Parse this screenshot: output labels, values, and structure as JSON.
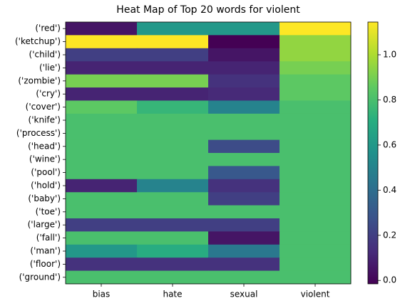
{
  "chart_data": {
    "type": "heatmap",
    "title": "Heat Map of Top 20 words for violent",
    "columns": [
      "bias",
      "hate",
      "sexual",
      "violent"
    ],
    "rows": [
      "('red')",
      "('ketchup')",
      "('child')",
      "('lie')",
      "('zombie')",
      "('cry')",
      "('cover')",
      "('knife')",
      "('process')",
      "('head')",
      "('wine')",
      "('pool')",
      "('hold')",
      "('baby')",
      "('toe')",
      "('large')",
      "('fall')",
      "('man')",
      "('floor')",
      "('ground')"
    ],
    "values": [
      [
        0.05,
        0.6,
        0.6,
        1.145
      ],
      [
        1.145,
        1.145,
        -0.015,
        0.95
      ],
      [
        0.2,
        0.2,
        0.05,
        0.95
      ],
      [
        0.1,
        0.1,
        0.1,
        0.9
      ],
      [
        0.9,
        0.9,
        0.15,
        0.85
      ],
      [
        0.1,
        0.1,
        0.12,
        0.85
      ],
      [
        0.85,
        0.75,
        0.5,
        0.8
      ],
      [
        0.8,
        0.8,
        0.8,
        0.8
      ],
      [
        0.8,
        0.8,
        0.8,
        0.8
      ],
      [
        0.8,
        0.8,
        0.25,
        0.8
      ],
      [
        0.8,
        0.8,
        0.8,
        0.8
      ],
      [
        0.8,
        0.8,
        0.3,
        0.8
      ],
      [
        0.1,
        0.5,
        0.15,
        0.8
      ],
      [
        0.8,
        0.8,
        0.2,
        0.8
      ],
      [
        0.8,
        0.8,
        0.8,
        0.8
      ],
      [
        0.2,
        0.2,
        0.2,
        0.8
      ],
      [
        0.8,
        0.8,
        0.05,
        0.8
      ],
      [
        0.6,
        0.7,
        0.45,
        0.8
      ],
      [
        0.15,
        0.15,
        0.15,
        0.8
      ],
      [
        0.8,
        0.8,
        0.8,
        0.8
      ]
    ],
    "colormap": "viridis",
    "clim": [
      -0.015,
      1.145
    ],
    "cticks": [
      {
        "value": 0,
        "label": "0.0"
      },
      {
        "value": 0.2,
        "label": "0.2"
      },
      {
        "value": 0.4,
        "label": "0.4"
      },
      {
        "value": 0.6,
        "label": "0.6"
      },
      {
        "value": 0.8,
        "label": "0.8"
      },
      {
        "value": 1,
        "label": "1.0"
      }
    ]
  }
}
